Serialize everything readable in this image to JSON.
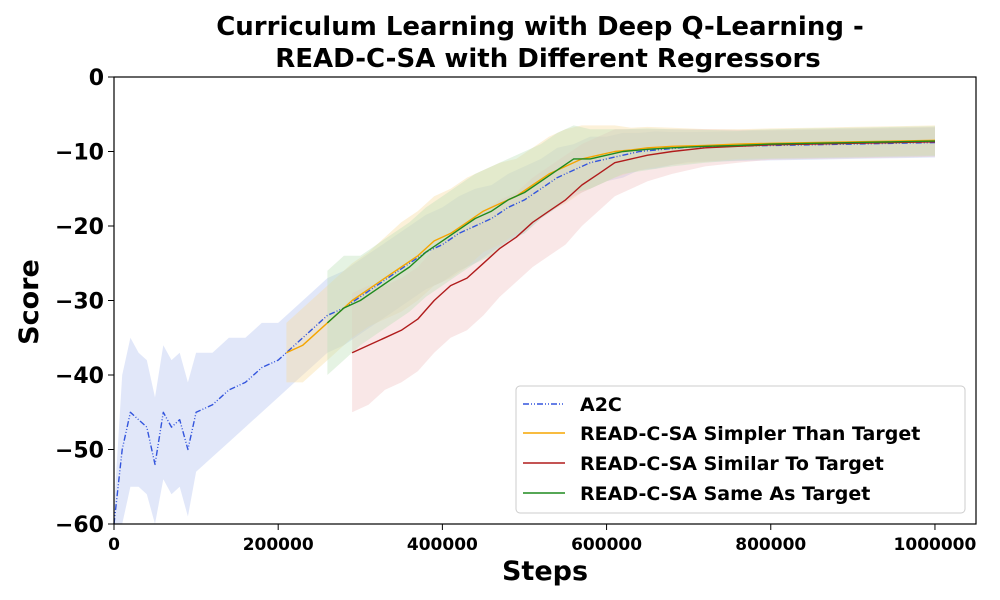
{
  "chart_data": {
    "type": "line",
    "title_lines": [
      "Curriculum Learning with Deep Q-Learning -",
      "READ-C-SA with Different Regressors"
    ],
    "xlabel": "Steps",
    "ylabel": "Score",
    "xlim": [
      0,
      1050000
    ],
    "ylim": [
      -60,
      0
    ],
    "xticks": [
      0,
      200000,
      400000,
      600000,
      800000,
      1000000
    ],
    "xtick_labels": [
      "0",
      "200000",
      "400000",
      "600000",
      "800000",
      "1000000"
    ],
    "yticks": [
      0,
      -10,
      -20,
      -30,
      -40,
      -50,
      -60
    ],
    "ytick_labels": [
      "0",
      "−10",
      "−20",
      "−30",
      "−40",
      "−50",
      "−60"
    ],
    "grid": false,
    "legend_position": "lower-right",
    "series": [
      {
        "name": "A2C",
        "color": "#3355dd",
        "band_color": "#b4c2f0",
        "dash": "dashdot",
        "x": [
          0,
          10000,
          20000,
          30000,
          40000,
          50000,
          60000,
          70000,
          80000,
          90000,
          100000,
          120000,
          140000,
          160000,
          180000,
          200000,
          220000,
          240000,
          260000,
          280000,
          300000,
          320000,
          340000,
          360000,
          380000,
          400000,
          420000,
          440000,
          460000,
          480000,
          500000,
          520000,
          540000,
          560000,
          580000,
          600000,
          620000,
          640000,
          660000,
          680000,
          700000,
          750000,
          800000,
          850000,
          900000,
          950000,
          1000000
        ],
        "y": [
          -60,
          -50,
          -45,
          -46,
          -47,
          -52,
          -45,
          -47,
          -46,
          -50,
          -45,
          -44,
          -42,
          -41,
          -39,
          -38,
          -36,
          -34,
          -32,
          -31,
          -29.5,
          -28,
          -26.5,
          -25,
          -23.5,
          -22.5,
          -21,
          -20,
          -19,
          -17.5,
          -16.5,
          -15,
          -13.5,
          -12.5,
          -11.5,
          -11,
          -10.5,
          -10,
          -9.8,
          -9.6,
          -9.4,
          -9.3,
          -9.2,
          -9.1,
          -9.0,
          -8.9,
          -8.8
        ],
        "band_width": [
          2,
          10,
          10,
          9,
          9,
          9,
          9,
          9,
          9,
          9,
          8,
          7,
          7,
          6,
          6,
          5,
          5,
          5,
          5,
          5,
          5,
          5,
          5,
          5,
          5,
          5,
          5,
          5,
          4.5,
          4.5,
          4.5,
          4,
          4,
          3.5,
          3.5,
          3,
          3,
          2.5,
          2.5,
          2.2,
          2,
          2,
          2,
          2,
          2,
          2,
          2
        ]
      },
      {
        "name": "READ-C-SA Simpler Than Target",
        "color": "#f5a500",
        "band_color": "#f7dba0",
        "dash": "solid",
        "x": [
          210000,
          230000,
          250000,
          270000,
          290000,
          310000,
          330000,
          350000,
          370000,
          390000,
          410000,
          430000,
          450000,
          470000,
          490000,
          510000,
          530000,
          550000,
          570000,
          590000,
          610000,
          630000,
          650000,
          680000,
          720000,
          760000,
          800000,
          850000,
          900000,
          950000,
          1000000
        ],
        "y": [
          -37,
          -36,
          -34,
          -32,
          -30,
          -28.5,
          -27,
          -25.5,
          -24,
          -22,
          -21,
          -19.5,
          -18,
          -17,
          -16,
          -14.5,
          -13,
          -12,
          -11,
          -10.5,
          -10,
          -9.8,
          -9.5,
          -9.3,
          -9.2,
          -9.0,
          -8.9,
          -8.8,
          -8.7,
          -8.6,
          -8.5
        ],
        "band_width": [
          4,
          5,
          5,
          5,
          5,
          5,
          5.5,
          6,
          6,
          6,
          6,
          6,
          5.5,
          5.5,
          5,
          5,
          5,
          5,
          4.5,
          4,
          3.5,
          3,
          2.8,
          2.5,
          2.2,
          2,
          2,
          2,
          2,
          2,
          2
        ]
      },
      {
        "name": "READ-C-SA Similar To Target",
        "color": "#b01c1c",
        "band_color": "#f0c4c4",
        "dash": "solid",
        "x": [
          290000,
          310000,
          330000,
          350000,
          370000,
          390000,
          410000,
          430000,
          450000,
          470000,
          490000,
          510000,
          530000,
          550000,
          570000,
          590000,
          610000,
          630000,
          650000,
          680000,
          720000,
          760000,
          800000,
          850000,
          900000,
          950000,
          1000000
        ],
        "y": [
          -37,
          -36,
          -35,
          -34,
          -32.5,
          -30,
          -28,
          -27,
          -25,
          -23,
          -21.5,
          -19.5,
          -18,
          -16.5,
          -14.5,
          -13,
          -11.5,
          -11,
          -10.5,
          -10,
          -9.5,
          -9.3,
          -9.1,
          -9.0,
          -8.9,
          -8.8,
          -8.7
        ],
        "band_width": [
          8,
          8,
          7,
          7,
          7,
          7,
          7,
          7,
          7,
          6.5,
          6,
          6,
          6,
          6,
          5.5,
          5,
          4.5,
          4,
          3.5,
          3,
          2.5,
          2.2,
          2,
          2,
          2,
          2,
          2
        ]
      },
      {
        "name": "READ-C-SA Same As Target",
        "color": "#1f8a1f",
        "band_color": "#bde2b8",
        "dash": "solid",
        "x": [
          260000,
          280000,
          300000,
          320000,
          340000,
          360000,
          380000,
          400000,
          420000,
          440000,
          460000,
          480000,
          500000,
          520000,
          540000,
          560000,
          580000,
          600000,
          620000,
          650000,
          680000,
          720000,
          760000,
          800000,
          850000,
          900000,
          950000,
          1000000
        ],
        "y": [
          -33,
          -31,
          -30,
          -28.5,
          -27,
          -25.5,
          -23.5,
          -22,
          -20.5,
          -19,
          -18,
          -16.5,
          -15.5,
          -14,
          -12.5,
          -11,
          -11,
          -10.5,
          -10,
          -9.7,
          -9.5,
          -9.3,
          -9.2,
          -9.0,
          -8.9,
          -8.8,
          -8.7,
          -8.6
        ],
        "band_width": [
          7,
          7,
          6,
          6,
          6,
          6,
          6,
          6,
          6,
          6,
          6,
          5.5,
          5.5,
          5,
          5,
          4.5,
          4,
          3.5,
          3,
          2.8,
          2.5,
          2.2,
          2,
          2,
          2,
          2,
          2,
          2
        ]
      }
    ]
  }
}
